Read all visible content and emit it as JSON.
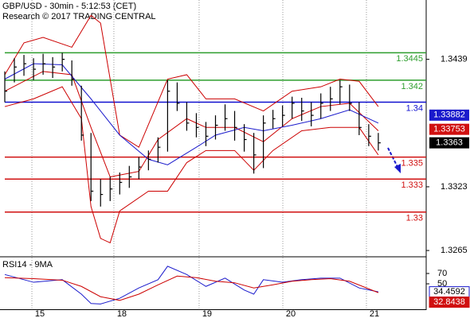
{
  "chart_data": {
    "type": "ohlc",
    "title": "GBP/USD - 30min - 5:12:53 (CET)",
    "subtitle": "Research © 2017 TRADING CENTRAL",
    "xlim": [
      -0.5,
      44
    ],
    "xticks": [
      {
        "value": 2.83,
        "label": "15"
      },
      {
        "value": 11.39,
        "label": "18"
      },
      {
        "value": 20.29,
        "label": "19"
      },
      {
        "value": 29.03,
        "label": "20"
      },
      {
        "value": 37.76,
        "label": "21"
      }
    ],
    "ylim": [
      1.326,
      1.3493
    ],
    "yticks": [
      1.3439,
      1.3323,
      1.3265
    ],
    "bar_color": "#000000",
    "high": [
      1.3428,
      1.344,
      1.3443,
      1.344,
      1.3444,
      1.3441,
      1.3445,
      1.3438,
      1.3415,
      1.3372,
      1.333,
      1.3332,
      1.3336,
      1.3342,
      1.335,
      1.3356,
      1.3368,
      1.342,
      1.3418,
      1.34,
      1.339,
      1.3382,
      1.3388,
      1.3398,
      1.3392,
      1.338,
      1.3372,
      1.3388,
      1.3393,
      1.3397,
      1.3405,
      1.3404,
      1.34,
      1.3408,
      1.3414,
      1.342,
      1.3416,
      1.34,
      1.338,
      1.3372
    ],
    "low": [
      1.34,
      1.3418,
      1.3424,
      1.342,
      1.3425,
      1.3422,
      1.3428,
      1.3415,
      1.3365,
      1.331,
      1.3305,
      1.331,
      1.3316,
      1.3322,
      1.333,
      1.3338,
      1.3345,
      1.3355,
      1.3392,
      1.3374,
      1.3368,
      1.336,
      1.3366,
      1.3374,
      1.3365,
      1.3355,
      1.3335,
      1.334,
      1.3376,
      1.3378,
      1.3385,
      1.3383,
      1.3378,
      1.3385,
      1.3392,
      1.3398,
      1.3392,
      1.337,
      1.336,
      1.3356
    ],
    "close": [
      1.341,
      1.3432,
      1.3435,
      1.343,
      1.3435,
      1.3432,
      1.3439,
      1.3421,
      1.337,
      1.3319,
      1.3316,
      1.3321,
      1.3327,
      1.3332,
      1.3341,
      1.3348,
      1.3359,
      1.341,
      1.3399,
      1.3381,
      1.3377,
      1.3369,
      1.3379,
      1.3385,
      1.3377,
      1.3366,
      1.3352,
      1.3381,
      1.3385,
      1.3388,
      1.3399,
      1.3392,
      1.3388,
      1.3399,
      1.3403,
      1.3414,
      1.3399,
      1.3377,
      1.3369,
      1.3363
    ],
    "overlays": [
      {
        "color": "#cc0000",
        "x": [
          0,
          2,
          4,
          7,
          9,
          10,
          12,
          14,
          17,
          19,
          21,
          24,
          27,
          30,
          33,
          35,
          37,
          39
        ],
        "values": [
          1.3425,
          1.3454,
          1.3459,
          1.345,
          1.3479,
          1.3472,
          1.337,
          1.3359,
          1.3421,
          1.3425,
          1.3403,
          1.3403,
          1.3392,
          1.341,
          1.3414,
          1.3421,
          1.3419,
          1.3396
        ]
      },
      {
        "color": "#cc0000",
        "x": [
          0,
          3,
          6,
          8,
          9,
          10,
          11,
          12,
          15,
          17,
          19,
          21,
          24,
          26,
          28,
          31,
          34,
          37,
          39
        ],
        "values": [
          1.3396,
          1.3403,
          1.3414,
          1.3385,
          1.3305,
          1.3276,
          1.3272,
          1.3301,
          1.3319,
          1.3319,
          1.3345,
          1.3356,
          1.3356,
          1.3338,
          1.3356,
          1.3374,
          1.3377,
          1.3377,
          1.3352
        ]
      },
      {
        "color": "#cc0000",
        "x": [
          0,
          4,
          7,
          9,
          11,
          14,
          16,
          19,
          21,
          24,
          27,
          30,
          33,
          36,
          39
        ],
        "values": [
          1.341,
          1.3428,
          1.3425,
          1.3377,
          1.3332,
          1.3337,
          1.3366,
          1.3385,
          1.3377,
          1.3377,
          1.3364,
          1.3385,
          1.3396,
          1.3399,
          1.3374
        ]
      },
      {
        "color": "#1a1acc",
        "x": [
          0,
          3,
          6,
          9,
          12,
          15,
          17,
          20,
          22,
          25,
          27,
          30,
          33,
          36,
          39
        ],
        "values": [
          1.3421,
          1.3435,
          1.3434,
          1.3403,
          1.337,
          1.3348,
          1.3343,
          1.3359,
          1.337,
          1.3377,
          1.3374,
          1.3379,
          1.3385,
          1.3393,
          1.3381
        ]
      }
    ],
    "levels": [
      {
        "value": 1.3445,
        "color": "#2e9e2e"
      },
      {
        "value": 1.342,
        "color": "#2e9e2e"
      },
      {
        "value": 1.34,
        "color": "#1010d0"
      },
      {
        "value": 1.335,
        "color": "#d01010"
      },
      {
        "value": 1.333,
        "color": "#d01010"
      },
      {
        "value": 1.33,
        "color": "#d01010"
      }
    ],
    "price_tags": [
      {
        "value": 1.33882,
        "color": "#1a1acc"
      },
      {
        "value": 1.33753,
        "color": "#d01010"
      },
      {
        "value": 1.3363,
        "color": "#000000"
      }
    ],
    "rsi": {
      "title": "RSI14 - 9MA",
      "ylim": [
        0,
        100
      ],
      "yticks": [
        70,
        50
      ],
      "series": [
        {
          "color": "#1a1acc",
          "x": [
            0,
            3,
            6,
            8,
            9,
            10,
            12,
            14,
            16,
            17,
            19,
            21,
            23,
            25,
            26,
            27,
            29,
            31,
            33,
            35,
            37,
            39
          ],
          "values": [
            68,
            53,
            58,
            30,
            12,
            11,
            22,
            42,
            58,
            84,
            68,
            45,
            61,
            38,
            30,
            58,
            53,
            58,
            61,
            61,
            42,
            34.4592
          ]
        },
        {
          "color": "#cc0000",
          "x": [
            0,
            3,
            6,
            8,
            10,
            12,
            14,
            16,
            18,
            20,
            22,
            24,
            26,
            28,
            30,
            32,
            34,
            36,
            39
          ],
          "values": [
            62,
            60,
            57,
            45,
            25,
            18,
            30,
            48,
            65,
            62,
            55,
            52,
            42,
            48,
            55,
            58,
            60,
            55,
            32.8438
          ]
        }
      ],
      "tags": [
        {
          "value": 34.4592,
          "color": "#ffffff"
        },
        {
          "value": 32.8438,
          "color": "#d01010"
        }
      ]
    }
  }
}
